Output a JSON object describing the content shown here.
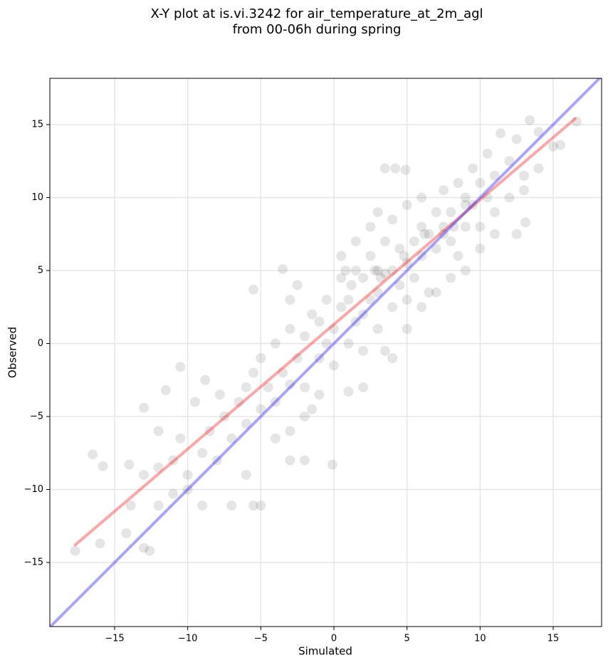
{
  "chart_data": {
    "type": "scatter",
    "title": [
      "X-Y plot at is.vi.3242 for air_temperature_at_2m_agl",
      "from 00-06h during spring"
    ],
    "x_label": "Simulated",
    "y_label": "Observed",
    "xlim": [
      -19.43,
      18.31
    ],
    "ylim": [
      -19.39,
      18.17
    ],
    "xticks": [
      {
        "value": -15,
        "label": "−15"
      },
      {
        "value": -10,
        "label": "−10"
      },
      {
        "value": -5,
        "label": "−5"
      },
      0,
      5,
      10,
      15
    ],
    "yticks": [
      {
        "value": -15,
        "label": "−15"
      },
      {
        "value": -10,
        "label": "−10"
      },
      {
        "value": -5,
        "label": "−5"
      },
      0,
      5,
      10,
      15
    ],
    "grid": true,
    "color": "#000000",
    "x": [
      -16.5,
      -15.8,
      -16,
      -17.7,
      -14.2,
      -13,
      -12.6,
      -13,
      -11.5,
      -10.5,
      -5.5,
      -3.5,
      -0.1,
      -5,
      -5.5,
      -7,
      -9,
      -12,
      -13.9,
      3.5,
      4.2,
      4.9,
      13.1,
      13.4,
      16.6,
      11.4,
      15.5,
      -9,
      -8.5,
      -8,
      -7.5,
      -7,
      -6.5,
      -6,
      -6,
      -5.5,
      -5,
      -5,
      -4.5,
      -4,
      -4,
      -3.5,
      -3,
      -3,
      -2.5,
      -2,
      -2,
      -1.5,
      -1,
      -1,
      -0.5,
      -0.5,
      0,
      0,
      0.5,
      0.5,
      1,
      1,
      1.5,
      1.5,
      2,
      2,
      2,
      2.5,
      2.5,
      3,
      3,
      3,
      3.5,
      3.5,
      4,
      4,
      4,
      4.5,
      4.5,
      5,
      5,
      5,
      5.5,
      5.5,
      6,
      6,
      6,
      6.5,
      6.5,
      7,
      7,
      7.5,
      7.5,
      8,
      8,
      8.5,
      8.5,
      9,
      9,
      9.5,
      9.5,
      10,
      10,
      10.5,
      10.5,
      11,
      11,
      12,
      12,
      12.5,
      13,
      14,
      14,
      15,
      -10,
      -11,
      -12,
      -13,
      -14,
      -10.5,
      -9.5,
      -8.8,
      -7.8,
      -12,
      -11,
      -10,
      -6,
      -3,
      -2,
      1,
      2,
      -1,
      0.5,
      1.5,
      3,
      2.5,
      -2.5,
      -3,
      7,
      8,
      9,
      10,
      11,
      13,
      3.5,
      5,
      6,
      4,
      12.5,
      -4,
      -3,
      -2,
      -1.5,
      0.8,
      1.2,
      2.8,
      3.2,
      4.8,
      6.2,
      7.5,
      8.2,
      9
    ],
    "values": [
      -7.6,
      -8.4,
      -13.7,
      -14.2,
      -13,
      -14,
      -14.2,
      -4.4,
      -3.2,
      -1.6,
      3.7,
      5.1,
      -8.3,
      -11.1,
      -11.1,
      -11.1,
      -11.1,
      -11.1,
      -11.1,
      12,
      12,
      11.9,
      8.3,
      15.3,
      15.2,
      14.4,
      13.6,
      -7.5,
      -6,
      -8,
      -5,
      -6.5,
      -4,
      -3,
      -5.5,
      -2,
      -4.5,
      -1,
      -3,
      0,
      -4,
      -2,
      -2.8,
      1,
      -1,
      0.5,
      -3,
      2,
      -1,
      1.5,
      3,
      0,
      1,
      -1.5,
      2.5,
      4.5,
      0,
      3,
      5,
      1.5,
      2,
      4.5,
      -0.5,
      3,
      6,
      1,
      5,
      3.5,
      4.8,
      7,
      2.5,
      5,
      8.5,
      4,
      6.5,
      3,
      5.5,
      9.5,
      7,
      4.5,
      8,
      6,
      10,
      7.5,
      3.5,
      9,
      6.5,
      8,
      10.5,
      7,
      9,
      11,
      6,
      10,
      8,
      12,
      9.5,
      11,
      8,
      13,
      10,
      11.5,
      7.5,
      12.5,
      10,
      14,
      11.5,
      14.5,
      12,
      13.5,
      -9,
      -8,
      -8.5,
      -9,
      -8.3,
      -6.5,
      -4,
      -2.5,
      -3.5,
      -6,
      -10.3,
      -10,
      -9,
      -8,
      -8,
      -3.3,
      -3,
      -3.5,
      6,
      7,
      9,
      8,
      4,
      3,
      3.5,
      4.5,
      5,
      6.5,
      9,
      10.5,
      -0.5,
      1,
      2.5,
      -1,
      7.5,
      -6.5,
      -6,
      -5,
      -4.5,
      5,
      4,
      5,
      4.5,
      6,
      7.5,
      7.5,
      8,
      9.5
    ],
    "lines": [
      {
        "color": "#ff0000",
        "x": [
          -17.7,
          16.5
        ],
        "values": [
          -13.8,
          15.4
        ]
      },
      {
        "color": "#0000ff",
        "x": [
          -19.4,
          18.3
        ],
        "values": [
          -19.4,
          18.3
        ]
      }
    ]
  }
}
